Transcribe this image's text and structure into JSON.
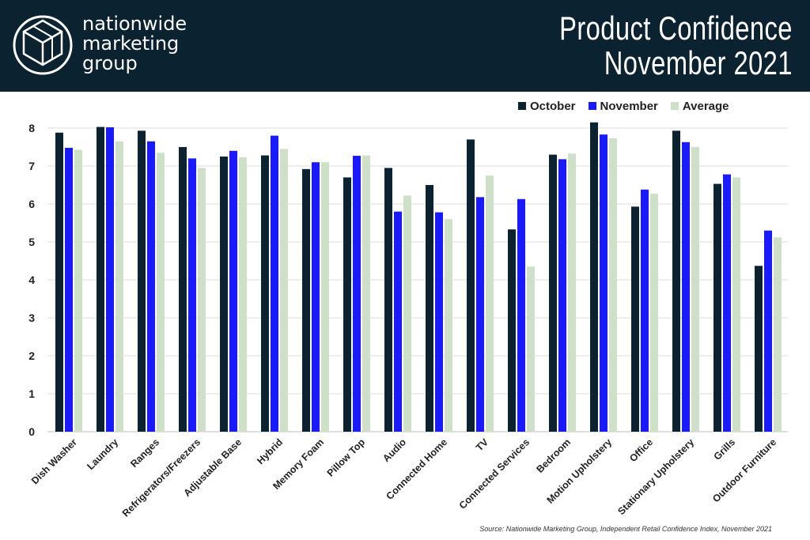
{
  "header": {
    "logo_lines": [
      "nationwide",
      "marketing",
      "group"
    ],
    "title_lines": [
      "Product Confidence",
      "November 2021"
    ]
  },
  "colors": {
    "header_bg": "#0b2230",
    "october": "#0b2230",
    "november": "#1a1aff",
    "average": "#cfe0c9"
  },
  "chart_data": {
    "type": "bar",
    "title": "Product Confidence November 2021",
    "xlabel": "",
    "ylabel": "",
    "ylim": [
      0,
      8
    ],
    "yticks": [
      0,
      1,
      2,
      3,
      4,
      5,
      6,
      7,
      8
    ],
    "grid": true,
    "legend_position": "top-right",
    "categories": [
      "Dish Washer",
      "Laundry",
      "Ranges",
      "Refrigerators/Freezers",
      "Adjustable Base",
      "Hybrid",
      "Memory Foam",
      "Pillow Top",
      "Audio",
      "Connected Home",
      "TV",
      "Connected Services",
      "Bedroom",
      "Motion Upholstery",
      "Office",
      "Stationary Upholstery",
      "Grills",
      "Outdoor Furniture"
    ],
    "series": [
      {
        "name": "October",
        "color": "#0b2230",
        "values": [
          7.88,
          8.03,
          7.93,
          7.5,
          7.25,
          7.28,
          6.92,
          6.7,
          6.95,
          6.5,
          7.7,
          5.33,
          7.3,
          8.15,
          5.93,
          7.93,
          6.53,
          4.37
        ]
      },
      {
        "name": "November",
        "color": "#1a1aff",
        "values": [
          7.48,
          8.02,
          7.65,
          7.2,
          7.4,
          7.8,
          7.1,
          7.27,
          5.8,
          5.78,
          6.18,
          6.13,
          7.18,
          7.83,
          6.38,
          7.63,
          6.78,
          5.3
        ]
      },
      {
        "name": "Average",
        "color": "#cfe0c9",
        "values": [
          7.43,
          7.65,
          7.35,
          6.95,
          7.23,
          7.45,
          7.1,
          7.28,
          6.22,
          5.6,
          6.75,
          4.35,
          7.33,
          7.73,
          6.27,
          7.5,
          6.7,
          5.12
        ]
      }
    ]
  },
  "source": "Source: Nationwide Marketing Group, Independent Retail Confidence Index, November 2021"
}
